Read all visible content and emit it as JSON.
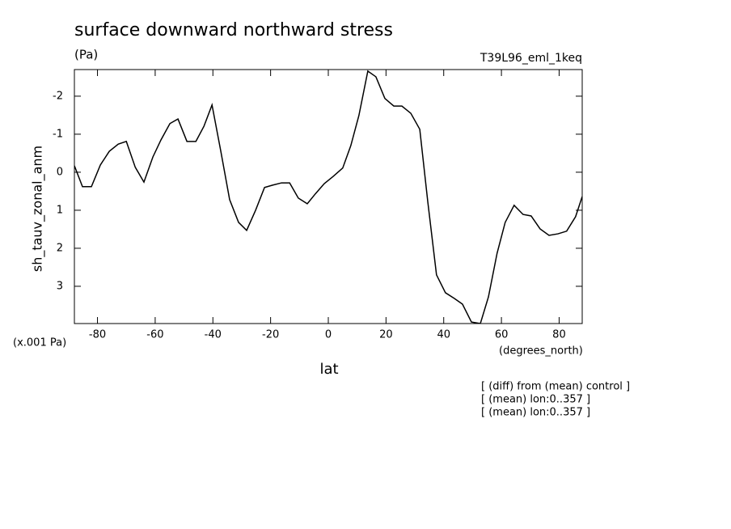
{
  "chart_data": {
    "type": "line",
    "title": "surface downward northward stress",
    "subtitle": "(Pa)",
    "run_label": "T39L96_eml_1keq",
    "x_label": "lat",
    "y_label": "sh_tauv_zonal_anm",
    "y_units": "(x.001 Pa)",
    "x_units": "(degrees_north)",
    "notes": [
      "[ (diff) from (mean) control ]",
      "[ (mean) lon:0..357 ]",
      "[ (mean) lon:0..357 ]"
    ],
    "color": "#000000",
    "x": [
      -88,
      -85.2,
      -82.1,
      -79.0,
      -75.9,
      -72.8,
      -70.0,
      -66.9,
      -63.9,
      -60.8,
      -58.0,
      -54.9,
      -52.1,
      -49.0,
      -45.9,
      -43.1,
      -40.3,
      -37.3,
      -34.2,
      -31.1,
      -28.3,
      -25.2,
      -22.1,
      -19.3,
      -16.2,
      -13.4,
      -10.4,
      -7.3,
      -4.5,
      -1.4,
      1.7,
      5.0,
      7.8,
      10.6,
      13.7,
      16.5,
      19.6,
      22.7,
      25.5,
      28.6,
      31.7,
      34.5,
      37.5,
      40.6,
      43.7,
      46.5,
      49.6,
      52.7,
      55.5,
      58.5,
      61.3,
      64.4,
      67.5,
      70.3,
      73.4,
      76.5,
      79.6,
      82.6,
      85.7,
      88
    ],
    "values": [
      -0.17,
      0.38,
      0.38,
      -0.19,
      -0.55,
      -0.74,
      -0.81,
      -0.13,
      0.26,
      -0.4,
      -0.85,
      -1.28,
      -1.4,
      -0.81,
      -0.81,
      -1.21,
      -1.77,
      -0.57,
      0.72,
      1.32,
      1.53,
      1.0,
      0.4,
      0.34,
      0.28,
      0.28,
      0.68,
      0.83,
      0.57,
      0.3,
      0.11,
      -0.11,
      -0.7,
      -1.49,
      -2.66,
      -2.51,
      -1.94,
      -1.74,
      -1.74,
      -1.55,
      -1.13,
      0.79,
      2.7,
      3.17,
      3.32,
      3.47,
      3.94,
      3.98,
      3.28,
      2.13,
      1.32,
      0.87,
      1.11,
      1.15,
      1.49,
      1.66,
      1.62,
      1.55,
      1.17,
      0.64
    ],
    "xlim": [
      -88,
      88
    ],
    "ylim": [
      3.98,
      -2.7
    ],
    "xticks": [
      -80,
      -60,
      -40,
      -20,
      0,
      20,
      40,
      60,
      80
    ],
    "yticks": [
      -2,
      -1,
      0,
      1,
      2,
      3
    ],
    "grid": false
  }
}
